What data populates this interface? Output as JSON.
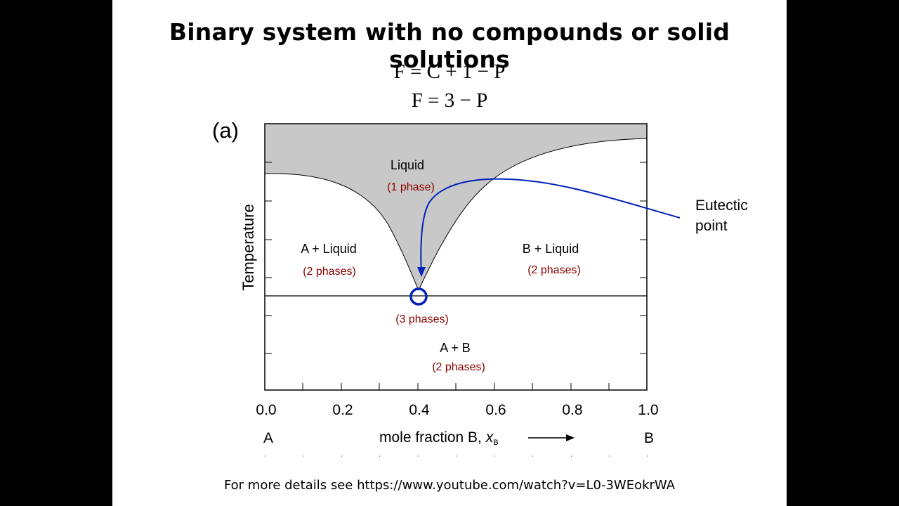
{
  "title": "Binary system with no compounds or solid solutions",
  "equations": [
    "F = C + 1 − P",
    "F = 3 − P"
  ],
  "panel_label": "(a)",
  "axis": {
    "ylabel": "Temperature",
    "xlabel": "mole fraction B, ",
    "xlabel_var": "x",
    "xlabel_sub": "B",
    "ticks": [
      "0.0",
      "0.2",
      "0.4",
      "0.6",
      "0.8",
      "1.0"
    ],
    "left_end": "A",
    "right_end": "B"
  },
  "regions": [
    {
      "name": "Liquid",
      "phases": "(1 phase)"
    },
    {
      "name": "A + Liquid",
      "phases": "(2 phases)"
    },
    {
      "name": "B + Liquid",
      "phases": "(2 phases)"
    },
    {
      "name": "",
      "phases": "(3 phases)"
    },
    {
      "name": "A + B",
      "phases": "(2 phases)"
    }
  ],
  "eutectic_label": [
    "Eutectic",
    "point"
  ],
  "eutectic_composition": 0.4,
  "footer": "For more details see https://www.youtube.com/watch?v=L0-3WEokrWA",
  "colors": {
    "liquid_fill": "#c8c8c8",
    "phase_text": "#8b0000",
    "arrow": "#0022bb"
  }
}
